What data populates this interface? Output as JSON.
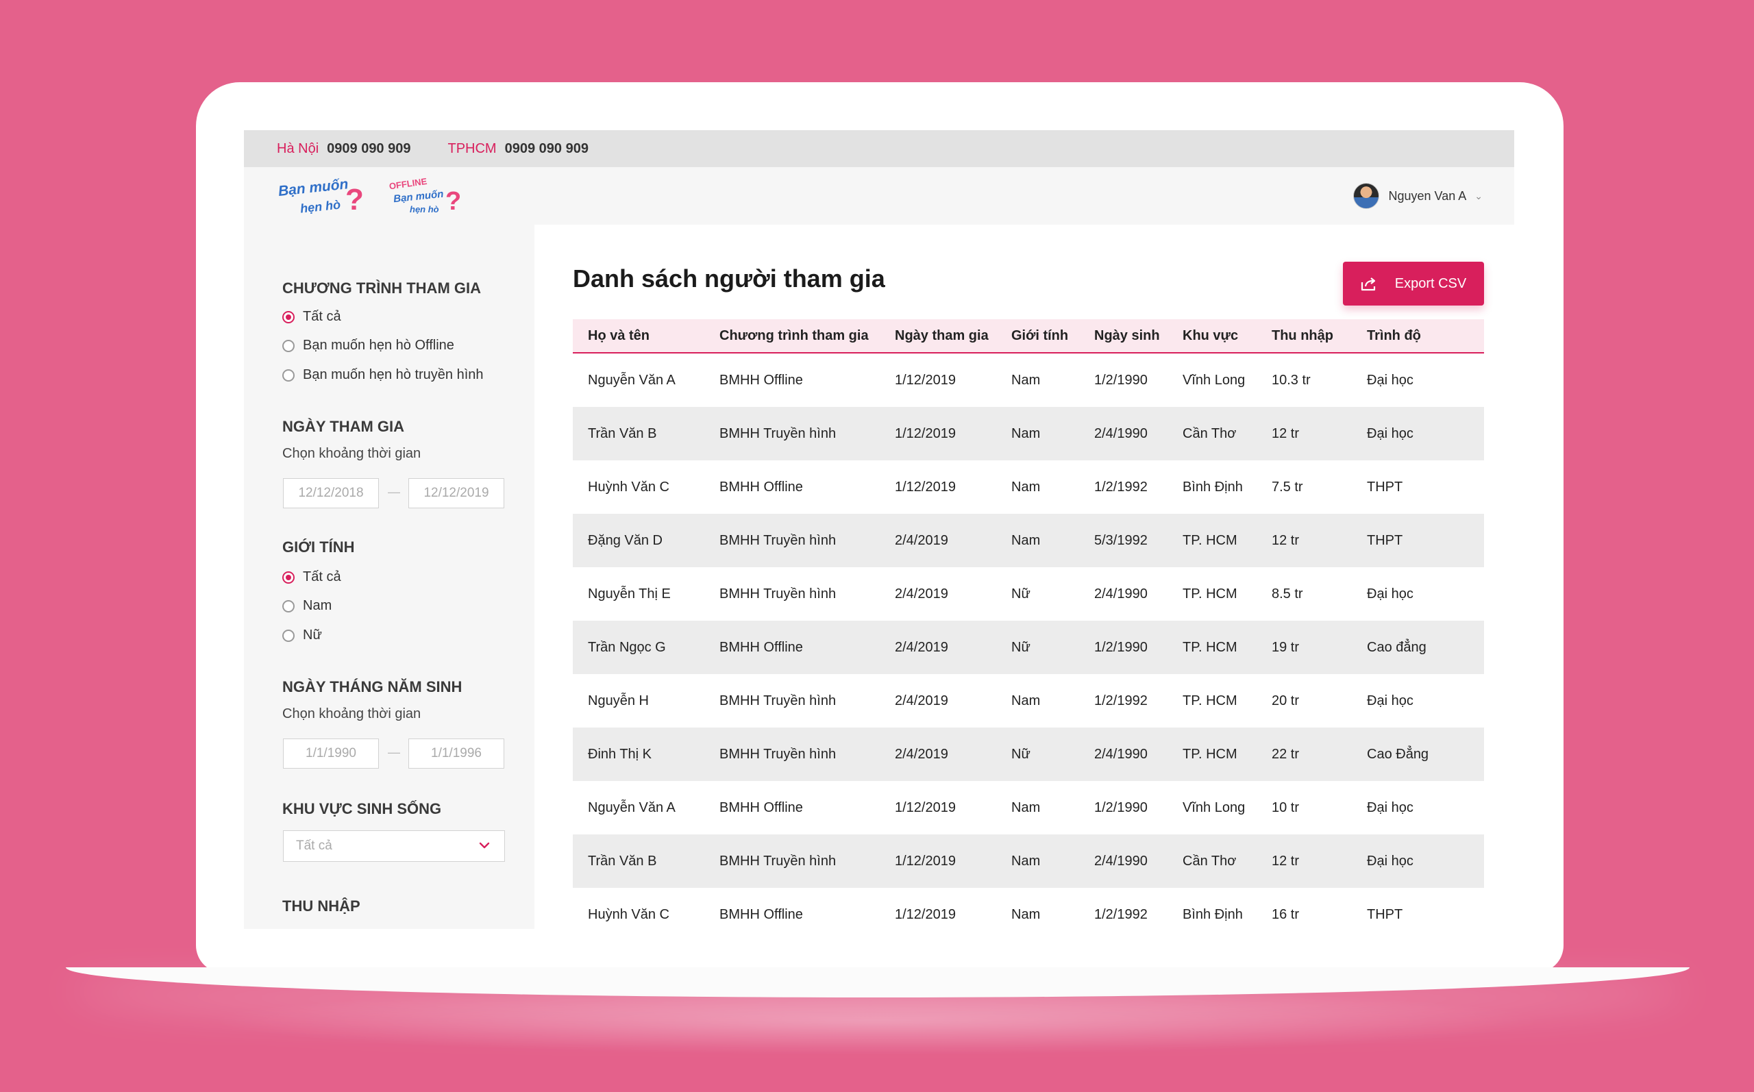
{
  "topbar": {
    "contacts": [
      {
        "city": "Hà Nội",
        "phone": "0909 090 909"
      },
      {
        "city": "TPHCM",
        "phone": "0909 090 909"
      }
    ]
  },
  "header": {
    "logos": [
      "Bạn muốn hẹn hò",
      "Offline Bạn muốn hẹn hò"
    ],
    "user_name": "Nguyen Van A"
  },
  "sidebar": {
    "program": {
      "title": "CHƯƠNG TRÌNH THAM GIA",
      "options": [
        "Tất cả",
        "Bạn muốn hẹn hò Offline",
        "Bạn muốn hẹn hò truyền hình"
      ],
      "selected": "Tất cả"
    },
    "join_date": {
      "title": "NGÀY THAM GIA",
      "subtitle": "Chọn khoảng thời gian",
      "from": "12/12/2018",
      "to": "12/12/2019",
      "separator": "—"
    },
    "gender": {
      "title": "GIỚI TÍNH",
      "options": [
        "Tất cả",
        "Nam",
        "Nữ"
      ],
      "selected": "Tất cả"
    },
    "birth_date": {
      "title": "NGÀY THÁNG NĂM SINH",
      "subtitle": "Chọn khoảng thời gian",
      "from": "1/1/1990",
      "to": "1/1/1996",
      "separator": "—"
    },
    "region": {
      "title": "KHU VỰC SINH SỐNG",
      "value": "Tất cả"
    },
    "income": {
      "title": "THU NHẬP"
    }
  },
  "main": {
    "title": "Danh sách người tham gia",
    "export_label": "Export CSV",
    "columns": [
      "Họ và tên",
      "Chương trình tham gia",
      "Ngày tham gia",
      "Giới tính",
      "Ngày sinh",
      "Khu vực",
      "Thu nhập",
      "Trình độ"
    ],
    "rows": [
      [
        "Nguyễn Văn A",
        "BMHH Offline",
        "1/12/2019",
        "Nam",
        "1/2/1990",
        "Vĩnh Long",
        "10.3 tr",
        "Đại học"
      ],
      [
        "Trần Văn B",
        "BMHH Truyền hình",
        "1/12/2019",
        "Nam",
        "2/4/1990",
        "Cần Thơ",
        "12 tr",
        "Đại học"
      ],
      [
        "Huỳnh Văn C",
        "BMHH Offline",
        "1/12/2019",
        "Nam",
        "1/2/1992",
        "Bình Định",
        "7.5 tr",
        "THPT"
      ],
      [
        "Đặng Văn D",
        "BMHH Truyền hình",
        "2/4/2019",
        "Nam",
        "5/3/1992",
        "TP. HCM",
        "12 tr",
        "THPT"
      ],
      [
        "Nguyễn Thị E",
        "BMHH Truyền hình",
        "2/4/2019",
        "Nữ",
        "2/4/1990",
        "TP. HCM",
        "8.5 tr",
        "Đại học"
      ],
      [
        "Trần Ngọc G",
        "BMHH Offline",
        "2/4/2019",
        "Nữ",
        "1/2/1990",
        "TP. HCM",
        "19 tr",
        "Cao đẳng"
      ],
      [
        "Nguyễn H",
        "BMHH Truyền hình",
        "2/4/2019",
        "Nam",
        "1/2/1992",
        "TP. HCM",
        "20 tr",
        "Đại học"
      ],
      [
        "Đinh Thị K",
        "BMHH Truyền hình",
        "2/4/2019",
        "Nữ",
        "2/4/1990",
        "TP. HCM",
        "22 tr",
        "Cao Đẳng"
      ],
      [
        "Nguyễn Văn A",
        "BMHH Offline",
        "1/12/2019",
        "Nam",
        "1/2/1990",
        "Vĩnh Long",
        "10 tr",
        "Đại học"
      ],
      [
        "Trần Văn B",
        "BMHH Truyền hình",
        "1/12/2019",
        "Nam",
        "2/4/1990",
        "Cần Thơ",
        "12 tr",
        "Đại học"
      ],
      [
        "Huỳnh Văn C",
        "BMHH Offline",
        "1/12/2019",
        "Nam",
        "1/2/1992",
        "Bình Định",
        "16 tr",
        "THPT"
      ]
    ]
  },
  "colors": {
    "background": "#e4618b",
    "accent": "#d81f5c",
    "header_row": "#fbe8ee",
    "alt_row": "#ececec"
  }
}
